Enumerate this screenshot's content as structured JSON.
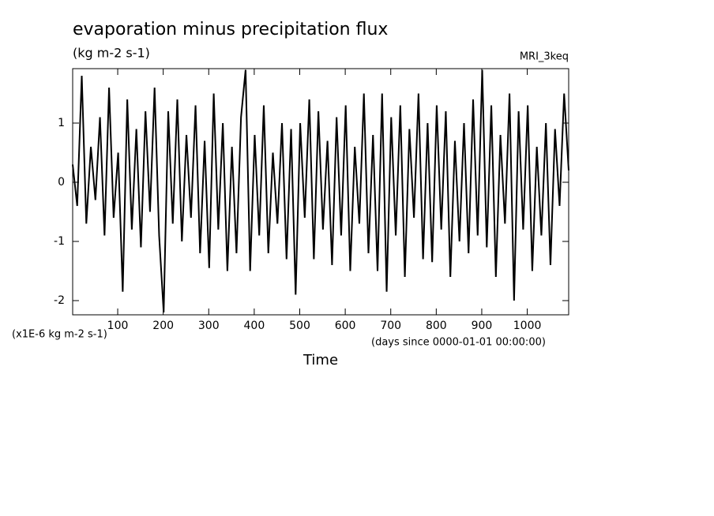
{
  "chart_data": {
    "type": "line",
    "title": "evaporation minus precipitation flux",
    "subtitle": "(kg m-2 s-1)",
    "source": "MRI_3keq",
    "y_unit_label": "(x1E-6 kg m-2 s-1)",
    "x_unit_label": "(days since 0000-01-01 00:00:00)",
    "x_label": "Time",
    "color": "#000000",
    "x": [
      1,
      11,
      21,
      31,
      41,
      51,
      61,
      71,
      81,
      91,
      101,
      111,
      121,
      131,
      141,
      151,
      161,
      171,
      181,
      191,
      201,
      211,
      221,
      231,
      241,
      251,
      261,
      271,
      281,
      291,
      301,
      311,
      321,
      331,
      341,
      351,
      361,
      371,
      381,
      391,
      401,
      411,
      421,
      431,
      441,
      451,
      461,
      471,
      481,
      491,
      501,
      511,
      521,
      531,
      541,
      551,
      561,
      571,
      581,
      591,
      601,
      611,
      621,
      631,
      641,
      651,
      661,
      671,
      681,
      691,
      701,
      711,
      721,
      731,
      741,
      751,
      761,
      771,
      781,
      791,
      801,
      811,
      821,
      831,
      841,
      851,
      861,
      871,
      881,
      891,
      901,
      911,
      921,
      931,
      941,
      951,
      961,
      971,
      981,
      991,
      1001,
      1011,
      1021,
      1031,
      1041,
      1051,
      1061,
      1071,
      1081,
      1091
    ],
    "values": [
      0.3,
      -0.4,
      1.8,
      -0.7,
      0.6,
      -0.3,
      1.1,
      -0.9,
      1.6,
      -0.6,
      0.5,
      -1.85,
      1.4,
      -0.8,
      0.9,
      -1.1,
      1.2,
      -0.5,
      1.6,
      -0.9,
      -2.2,
      1.2,
      -0.7,
      1.4,
      -1.0,
      0.8,
      -0.6,
      1.3,
      -1.2,
      0.7,
      -1.45,
      1.5,
      -0.8,
      1.0,
      -1.5,
      0.6,
      -1.2,
      1.1,
      1.9,
      -1.5,
      0.8,
      -0.9,
      1.3,
      -1.2,
      0.5,
      -0.7,
      1.0,
      -1.3,
      0.9,
      -1.9,
      1.0,
      -0.6,
      1.4,
      -1.3,
      1.2,
      -0.8,
      0.7,
      -1.4,
      1.1,
      -0.9,
      1.3,
      -1.5,
      0.6,
      -0.7,
      1.5,
      -1.2,
      0.8,
      -1.5,
      1.5,
      -1.85,
      1.1,
      -0.9,
      1.3,
      -1.6,
      0.9,
      -0.6,
      1.5,
      -1.3,
      1.0,
      -1.35,
      1.3,
      -0.8,
      1.2,
      -1.6,
      0.7,
      -1.0,
      1.0,
      -1.2,
      1.4,
      -0.9,
      1.9,
      -1.1,
      1.3,
      -1.6,
      0.8,
      -0.7,
      1.5,
      -2.0,
      1.2,
      -0.8,
      1.3,
      -1.5,
      0.6,
      -0.9,
      1.0,
      -1.4,
      0.9,
      -0.4,
      1.5,
      0.2
    ],
    "xlim": [
      1,
      1091
    ],
    "ylim": [
      -2.24,
      1.92
    ],
    "xticks": [
      100,
      200,
      300,
      400,
      500,
      600,
      700,
      800,
      900,
      1000
    ],
    "yticks": [
      -2,
      -1,
      0,
      1
    ]
  }
}
